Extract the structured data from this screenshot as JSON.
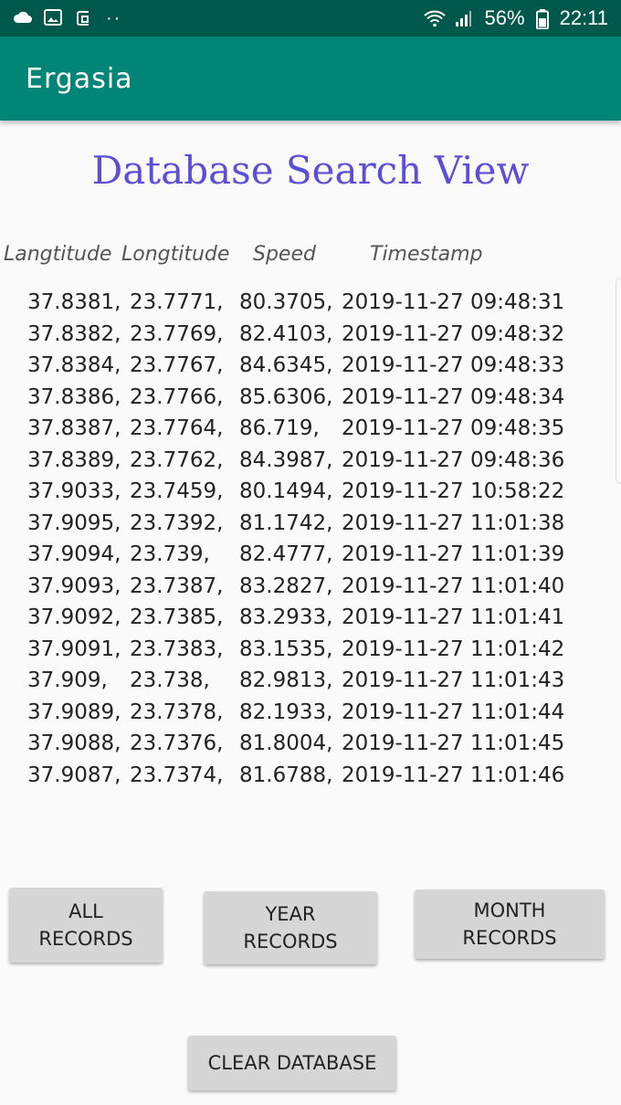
{
  "status_bar": {
    "battery": "56%",
    "time": "22:11",
    "dots": "··",
    "icons": [
      "cloud-icon",
      "image-icon",
      "app-notification-icon",
      "wifi-icon",
      "signal-icon",
      "battery-icon"
    ]
  },
  "app_bar": {
    "title": "Ergasia"
  },
  "page": {
    "title": "Database Search View"
  },
  "columns": [
    "Langtitude",
    "Longtitude",
    "Speed",
    "Timestamp"
  ],
  "records": [
    [
      "37.8381,",
      "23.7771,",
      "80.3705,",
      "2019-11-27 09:48:31"
    ],
    [
      "37.8382,",
      "23.7769,",
      "82.4103,",
      "2019-11-27 09:48:32"
    ],
    [
      "37.8384,",
      "23.7767,",
      "84.6345,",
      "2019-11-27 09:48:33"
    ],
    [
      "37.8386,",
      "23.7766,",
      "85.6306,",
      "2019-11-27 09:48:34"
    ],
    [
      "37.8387,",
      "23.7764,",
      "86.719,",
      "2019-11-27 09:48:35"
    ],
    [
      "37.8389,",
      "23.7762,",
      "84.3987,",
      "2019-11-27 09:48:36"
    ],
    [
      "37.9033,",
      "23.7459,",
      "80.1494,",
      "2019-11-27 10:58:22"
    ],
    [
      "37.9095,",
      "23.7392,",
      "81.1742,",
      "2019-11-27 11:01:38"
    ],
    [
      "37.9094,",
      "23.739,",
      "82.4777,",
      "2019-11-27 11:01:39"
    ],
    [
      "37.9093,",
      "23.7387,",
      "83.2827,",
      "2019-11-27 11:01:40"
    ],
    [
      "37.9092,",
      "23.7385,",
      "83.2933,",
      "2019-11-27 11:01:41"
    ],
    [
      "37.9091,",
      "23.7383,",
      "83.1535,",
      "2019-11-27 11:01:42"
    ],
    [
      "37.909,",
      "23.738,",
      "82.9813,",
      "2019-11-27 11:01:43"
    ],
    [
      "37.9089,",
      "23.7378,",
      "82.1933,",
      "2019-11-27 11:01:44"
    ],
    [
      "37.9088,",
      "23.7376,",
      "81.8004,",
      "2019-11-27 11:01:45"
    ],
    [
      "37.9087,",
      "23.7374,",
      "81.6788,",
      "2019-11-27 11:01:46"
    ]
  ],
  "buttons": {
    "all": "ALL\nRECORDS",
    "year": "YEAR\nRECORDS",
    "month": "MONTH\nRECORDS",
    "clear": "CLEAR DATABASE"
  }
}
